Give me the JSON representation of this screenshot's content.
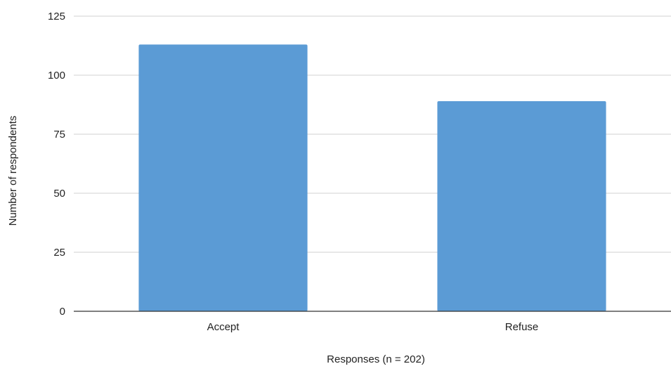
{
  "chart_data": {
    "type": "bar",
    "categories": [
      "Accept",
      "Refuse"
    ],
    "values": [
      113,
      89
    ],
    "xlabel": "Responses (n = 202)",
    "ylabel": "Number of respondents",
    "ylim": [
      0,
      125
    ],
    "yticks": [
      0,
      25,
      50,
      75,
      100,
      125
    ],
    "grid": true,
    "legend": "none",
    "bar_color": "#5b9bd5",
    "gridline_color": "#d0d0d0",
    "axis_color": "#333333"
  }
}
